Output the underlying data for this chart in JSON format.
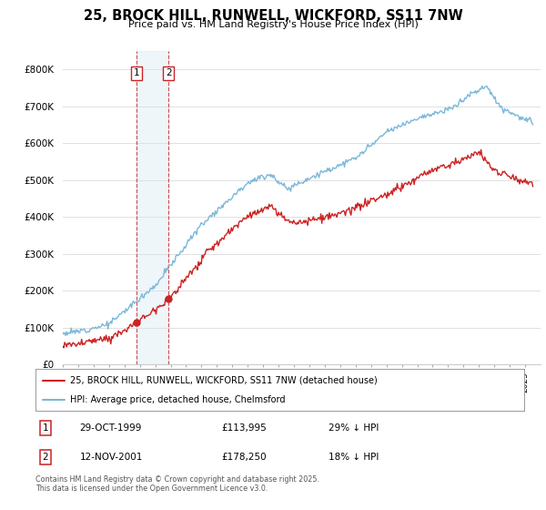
{
  "title": "25, BROCK HILL, RUNWELL, WICKFORD, SS11 7NW",
  "subtitle": "Price paid vs. HM Land Registry's House Price Index (HPI)",
  "ylim": [
    0,
    850000
  ],
  "yticks": [
    0,
    100000,
    200000,
    300000,
    400000,
    500000,
    600000,
    700000,
    800000
  ],
  "ytick_labels": [
    "£0",
    "£100K",
    "£200K",
    "£300K",
    "£400K",
    "£500K",
    "£600K",
    "£700K",
    "£800K"
  ],
  "hpi_color": "#7ab8d9",
  "price_color": "#cc2222",
  "sale1_yr": 1999.79,
  "sale1_price": 113995,
  "sale2_yr": 2001.87,
  "sale2_price": 178250,
  "sale1_date": "29-OCT-1999",
  "sale2_date": "12-NOV-2001",
  "sale1_pct": "29% ↓ HPI",
  "sale2_pct": "18% ↓ HPI",
  "legend_property": "25, BROCK HILL, RUNWELL, WICKFORD, SS11 7NW (detached house)",
  "legend_hpi": "HPI: Average price, detached house, Chelmsford",
  "footnote": "Contains HM Land Registry data © Crown copyright and database right 2025.\nThis data is licensed under the Open Government Licence v3.0.",
  "background_color": "#ffffff",
  "grid_color": "#e0e0e0"
}
